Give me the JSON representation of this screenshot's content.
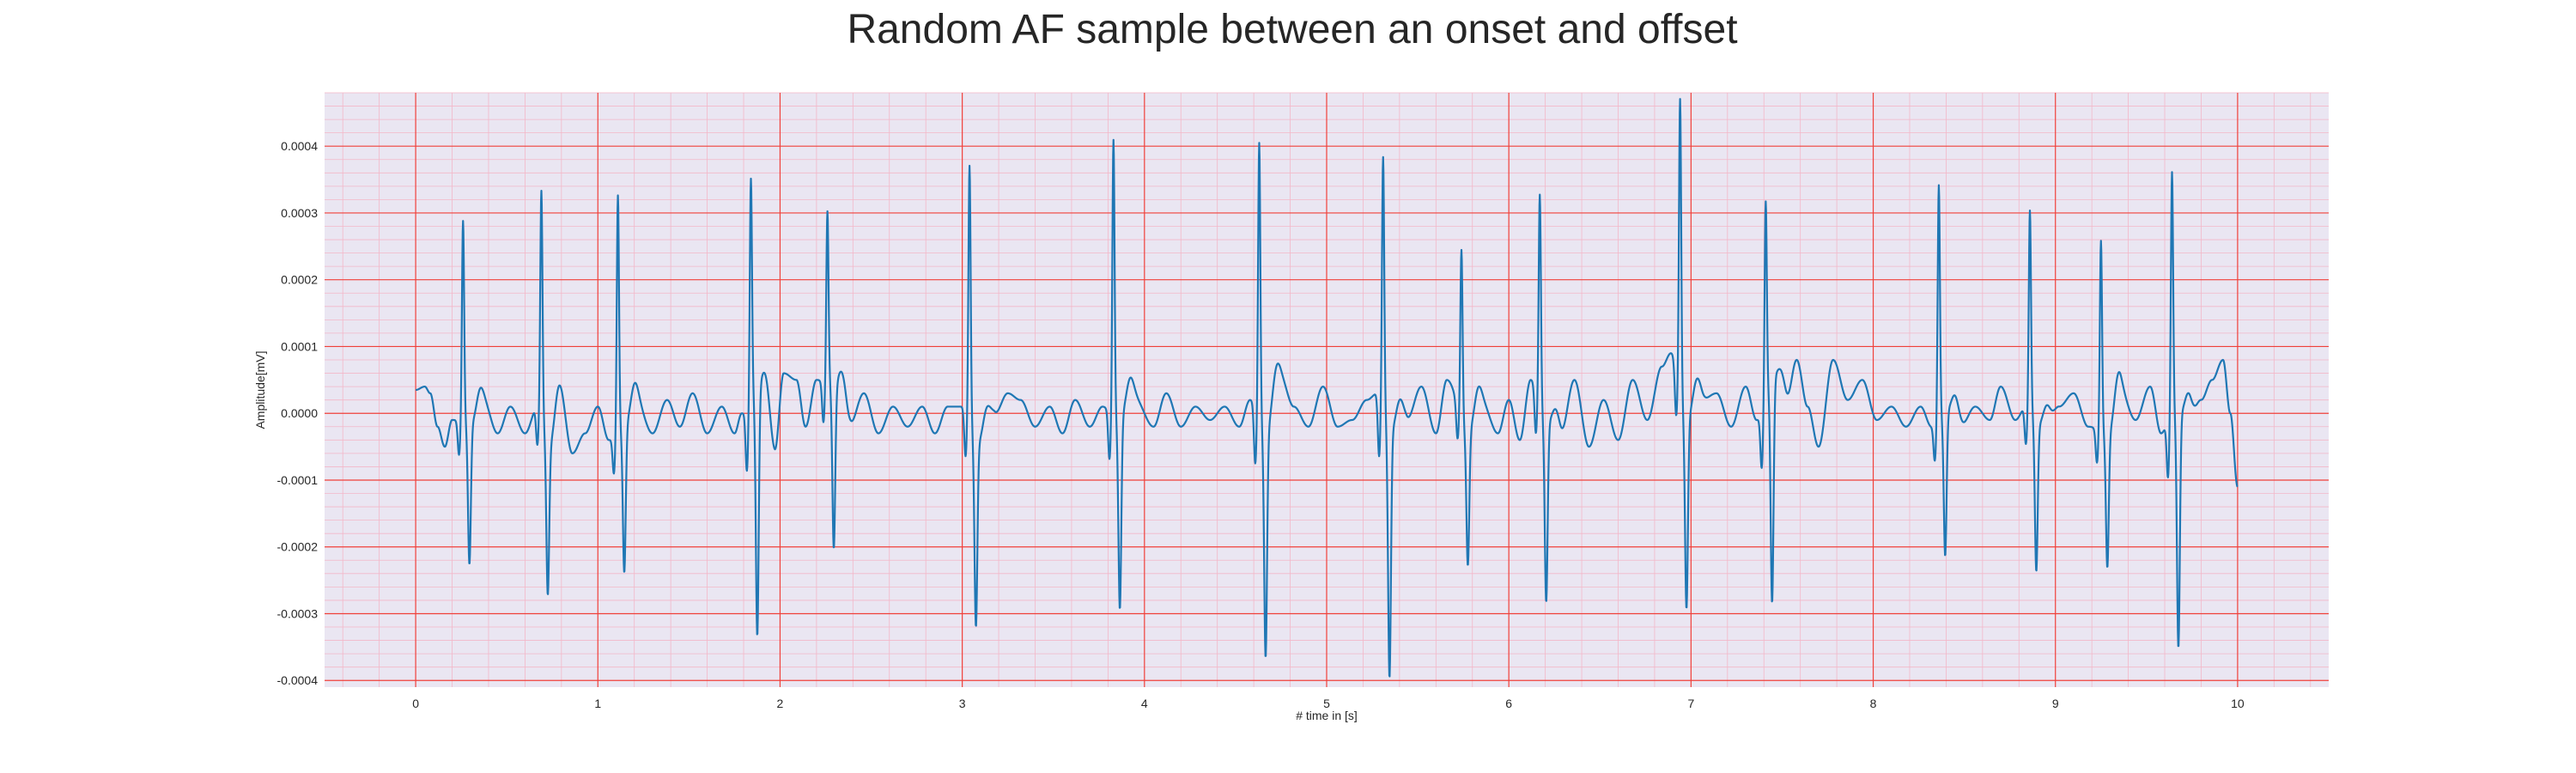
{
  "chart_data": {
    "type": "line",
    "title": "Random AF sample between an onset and offset",
    "xlabel": "# time in [s]",
    "ylabel": "Amplitude[mV]",
    "xlim": [
      -0.5,
      10.5
    ],
    "ylim": [
      -0.00041,
      0.00048
    ],
    "xticks": [
      0,
      1,
      2,
      3,
      4,
      5,
      6,
      7,
      8,
      9,
      10
    ],
    "xtick_labels": [
      "0",
      "1",
      "2",
      "3",
      "4",
      "5",
      "6",
      "7",
      "8",
      "9",
      "10"
    ],
    "yticks": [
      -0.0004,
      -0.0003,
      -0.0002,
      -0.0001,
      0.0,
      0.0001,
      0.0002,
      0.0003,
      0.0004
    ],
    "ytick_labels": [
      "-0.0004",
      "-0.0003",
      "-0.0002",
      "-0.0001",
      "0.0000",
      "0.0001",
      "0.0002",
      "0.0003",
      "0.0004"
    ],
    "grid": true,
    "major_grid_color": "#f0403a",
    "minor_grid_color": "#f3b7c8",
    "background_color": "#eae6f2",
    "series": [
      {
        "color": "#1f77b4",
        "baseline": [
          [
            0.0,
            3.5e-05
          ],
          [
            0.05,
            4e-05
          ],
          [
            0.08,
            3e-05
          ],
          [
            0.12,
            -2e-05
          ],
          [
            0.16,
            -5e-05
          ],
          [
            0.2,
            -1e-05
          ],
          [
            0.24,
            -1e-05
          ],
          [
            0.32,
            -2e-05
          ],
          [
            0.38,
            1e-05
          ],
          [
            0.45,
            -3e-05
          ],
          [
            0.52,
            1e-05
          ],
          [
            0.6,
            -3e-05
          ],
          [
            0.67,
            1e-05
          ],
          [
            0.74,
            -5e-05
          ],
          [
            0.8,
            1e-05
          ],
          [
            0.86,
            -6e-05
          ],
          [
            0.93,
            -3e-05
          ],
          [
            1.0,
            1e-05
          ],
          [
            1.06,
            -4e-05
          ],
          [
            1.15,
            -2e-05
          ],
          [
            1.22,
            1e-05
          ],
          [
            1.3,
            -3e-05
          ],
          [
            1.38,
            2e-05
          ],
          [
            1.45,
            -2e-05
          ],
          [
            1.52,
            3e-05
          ],
          [
            1.6,
            -3e-05
          ],
          [
            1.68,
            1e-05
          ],
          [
            1.75,
            -3e-05
          ],
          [
            1.79,
            0.0
          ],
          [
            1.9,
            4e-05
          ],
          [
            1.97,
            -6e-05
          ],
          [
            2.02,
            6e-05
          ],
          [
            2.09,
            5e-05
          ],
          [
            2.14,
            -2e-05
          ],
          [
            2.2,
            5e-05
          ],
          [
            2.32,
            4e-05
          ],
          [
            2.38,
            -2e-05
          ],
          [
            2.46,
            3e-05
          ],
          [
            2.54,
            -3e-05
          ],
          [
            2.62,
            1e-05
          ],
          [
            2.7,
            -2e-05
          ],
          [
            2.78,
            1e-05
          ],
          [
            2.85,
            -3e-05
          ],
          [
            2.92,
            1e-05
          ],
          [
            3.0,
            1e-05
          ],
          [
            3.1,
            -5e-05
          ],
          [
            3.18,
            0.0
          ],
          [
            3.25,
            3e-05
          ],
          [
            3.32,
            2e-05
          ],
          [
            3.4,
            -2e-05
          ],
          [
            3.48,
            1e-05
          ],
          [
            3.55,
            -3e-05
          ],
          [
            3.62,
            2e-05
          ],
          [
            3.7,
            -2e-05
          ],
          [
            3.77,
            1e-05
          ],
          [
            3.86,
            -1e-05
          ],
          [
            3.95,
            2e-05
          ],
          [
            4.05,
            -2e-05
          ],
          [
            4.12,
            3e-05
          ],
          [
            4.2,
            -2e-05
          ],
          [
            4.28,
            1e-05
          ],
          [
            4.36,
            -1e-05
          ],
          [
            4.44,
            1e-05
          ],
          [
            4.52,
            -2e-05
          ],
          [
            4.58,
            2e-05
          ],
          [
            4.67,
            -3e-05
          ],
          [
            4.75,
            5e-05
          ],
          [
            4.82,
            1e-05
          ],
          [
            4.9,
            -2e-05
          ],
          [
            4.98,
            4e-05
          ],
          [
            5.06,
            -2e-05
          ],
          [
            5.14,
            -1e-05
          ],
          [
            5.22,
            2e-05
          ],
          [
            5.28,
            3e-05
          ],
          [
            5.36,
            -3e-05
          ],
          [
            5.44,
            -1e-05
          ],
          [
            5.52,
            4e-05
          ],
          [
            5.6,
            -3e-05
          ],
          [
            5.66,
            5e-05
          ],
          [
            5.78,
            -3e-05
          ],
          [
            5.86,
            1e-05
          ],
          [
            5.94,
            -3e-05
          ],
          [
            6.0,
            2e-05
          ],
          [
            6.06,
            -4e-05
          ],
          [
            6.12,
            5e-05
          ],
          [
            6.22,
            -2e-05
          ],
          [
            6.28,
            -4e-05
          ],
          [
            6.36,
            5e-05
          ],
          [
            6.44,
            -5e-05
          ],
          [
            6.52,
            2e-05
          ],
          [
            6.6,
            -4e-05
          ],
          [
            6.68,
            5e-05
          ],
          [
            6.76,
            -1e-05
          ],
          [
            6.84,
            7e-05
          ],
          [
            6.89,
            9e-05
          ],
          [
            6.98,
            -1e-05
          ],
          [
            7.06,
            2e-05
          ],
          [
            7.14,
            3e-05
          ],
          [
            7.22,
            -2e-05
          ],
          [
            7.3,
            4e-05
          ],
          [
            7.36,
            -1e-05
          ],
          [
            7.46,
            5e-05
          ],
          [
            7.52,
            1e-05
          ],
          [
            7.58,
            8e-05
          ],
          [
            7.64,
            1e-05
          ],
          [
            7.7,
            -5e-05
          ],
          [
            7.78,
            8e-05
          ],
          [
            7.86,
            2e-05
          ],
          [
            7.94,
            5e-05
          ],
          [
            8.02,
            -1e-05
          ],
          [
            8.1,
            1e-05
          ],
          [
            8.18,
            -2e-05
          ],
          [
            8.26,
            1e-05
          ],
          [
            8.32,
            -2e-05
          ],
          [
            8.4,
            0.0
          ],
          [
            8.48,
            -2e-05
          ],
          [
            8.56,
            1e-05
          ],
          [
            8.64,
            -1e-05
          ],
          [
            8.7,
            4e-05
          ],
          [
            8.78,
            -1e-05
          ],
          [
            8.84,
            1e-05
          ],
          [
            8.94,
            -3e-05
          ],
          [
            9.02,
            1e-05
          ],
          [
            9.1,
            3e-05
          ],
          [
            9.18,
            -2e-05
          ],
          [
            9.3,
            -3e-05
          ],
          [
            9.36,
            3e-05
          ],
          [
            9.44,
            -1e-05
          ],
          [
            9.52,
            4e-05
          ],
          [
            9.58,
            -3e-05
          ],
          [
            9.64,
            0.0
          ],
          [
            9.74,
            -1e-05
          ],
          [
            9.8,
            2e-05
          ],
          [
            9.86,
            5e-05
          ],
          [
            9.92,
            8e-05
          ],
          [
            9.96,
            0.0
          ],
          [
            10.0,
            -0.00011
          ]
        ],
        "complexes": [
          [
            0.26,
            0.0003,
            -0.00021
          ],
          [
            0.69,
            0.000335,
            -0.00023
          ],
          [
            1.11,
            0.000355,
            -0.00022
          ],
          [
            1.84,
            0.000335,
            -0.00037
          ],
          [
            2.26,
            0.000258,
            -0.000245
          ],
          [
            3.04,
            0.000382,
            -0.00028
          ],
          [
            3.83,
            0.000415,
            -0.000285
          ],
          [
            4.63,
            0.000415,
            -0.000338
          ],
          [
            5.31,
            0.000373,
            -0.000373
          ],
          [
            5.74,
            0.000255,
            -0.0002
          ],
          [
            6.17,
            0.000313,
            -0.000268
          ],
          [
            6.94,
            0.00044,
            -0.000285
          ],
          [
            7.41,
            0.000298,
            -0.000332
          ],
          [
            8.36,
            0.000352,
            -0.000215
          ],
          [
            8.86,
            0.000298,
            -0.000225
          ],
          [
            9.25,
            0.000285,
            -0.000203
          ],
          [
            9.64,
            0.000362,
            -0.00035
          ]
        ]
      }
    ]
  }
}
